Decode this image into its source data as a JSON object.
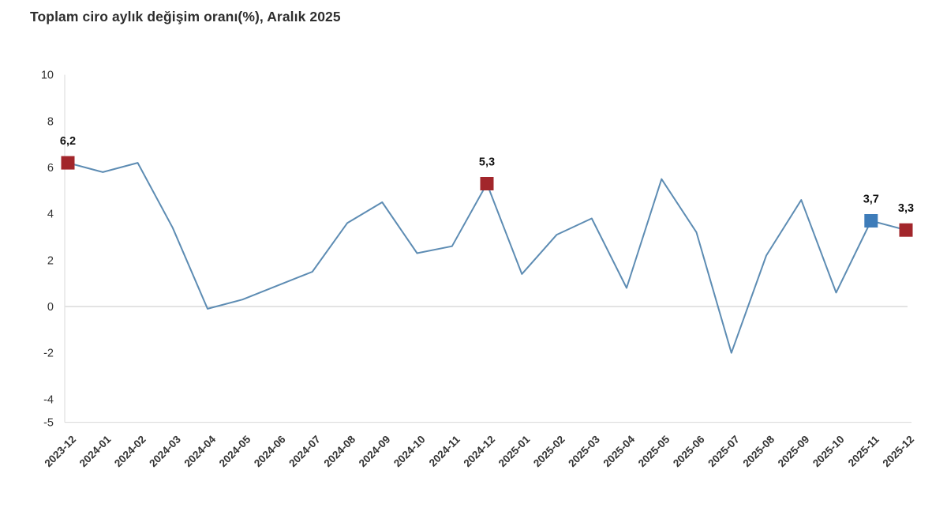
{
  "chart_data": {
    "type": "line",
    "title": "Toplam ciro aylık değişim oranı(%), Aralık 2025",
    "categories": [
      "2023-12",
      "2024-01",
      "2024-02",
      "2024-03",
      "2024-04",
      "2024-05",
      "2024-06",
      "2024-07",
      "2024-08",
      "2024-09",
      "2024-10",
      "2024-11",
      "2024-12",
      "2025-01",
      "2025-02",
      "2025-03",
      "2025-04",
      "2025-05",
      "2025-06",
      "2025-07",
      "2025-08",
      "2025-09",
      "2025-10",
      "2025-11",
      "2025-12"
    ],
    "values": [
      6.2,
      5.8,
      6.2,
      3.4,
      -0.1,
      0.3,
      0.9,
      1.5,
      3.6,
      4.5,
      2.3,
      2.6,
      5.3,
      1.4,
      3.1,
      3.8,
      0.8,
      5.5,
      3.2,
      -2.0,
      2.2,
      4.6,
      0.6,
      3.7,
      3.3
    ],
    "ylim": [
      -5,
      10
    ],
    "yticks": [
      10,
      8,
      6,
      4,
      2,
      0,
      -2,
      -4,
      -5
    ],
    "xlabel": "",
    "ylabel": "",
    "legend": "none",
    "grid": "zero-line, left y-axis and bottom axis only",
    "line_color": "#5d8cb3",
    "axis_color": "#d8d8d8",
    "zero_line_color": "#e3e3e3",
    "tick_text_color": "#333333",
    "data_label_color": "#111111",
    "highlighted_points": [
      {
        "category": "2023-12",
        "value": 6.2,
        "label": "6,2",
        "marker_color": "#a2262b"
      },
      {
        "category": "2024-12",
        "value": 5.3,
        "label": "5,3",
        "marker_color": "#a2262b"
      },
      {
        "category": "2025-11",
        "value": 3.7,
        "label": "3,7",
        "marker_color": "#3e7cb9"
      },
      {
        "category": "2025-12",
        "value": 3.3,
        "label": "3,3",
        "marker_color": "#a2262b"
      }
    ]
  }
}
